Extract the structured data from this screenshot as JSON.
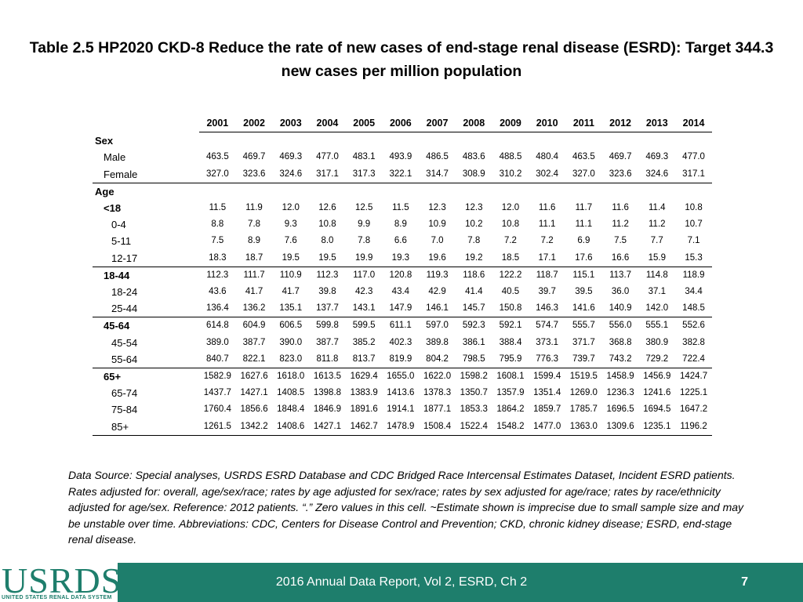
{
  "title": "Table 2.5  HP2020 CKD-8 Reduce the rate of new cases of end-stage renal disease (ESRD): Target 344.3 new cases per million population",
  "table": {
    "years": [
      "2001",
      "2002",
      "2003",
      "2004",
      "2005",
      "2006",
      "2007",
      "2008",
      "2009",
      "2010",
      "2011",
      "2012",
      "2013",
      "2014"
    ],
    "rows": [
      {
        "label": "Sex",
        "style": "group",
        "values": []
      },
      {
        "label": "Male",
        "style": "l1",
        "values": [
          "463.5",
          "469.7",
          "469.3",
          "477.0",
          "483.1",
          "493.9",
          "486.5",
          "483.6",
          "488.5",
          "480.4",
          "463.5",
          "469.7",
          "469.3",
          "477.0"
        ]
      },
      {
        "label": "Female",
        "style": "l1",
        "line": true,
        "values": [
          "327.0",
          "323.6",
          "324.6",
          "317.1",
          "317.3",
          "322.1",
          "314.7",
          "308.9",
          "310.2",
          "302.4",
          "327.0",
          "323.6",
          "324.6",
          "317.1"
        ]
      },
      {
        "label": "Age",
        "style": "group",
        "values": []
      },
      {
        "label": "<18",
        "style": "l1b",
        "values": [
          "11.5",
          "11.9",
          "12.0",
          "12.6",
          "12.5",
          "11.5",
          "12.3",
          "12.3",
          "12.0",
          "11.6",
          "11.7",
          "11.6",
          "11.4",
          "10.8"
        ]
      },
      {
        "label": "0-4",
        "style": "l2",
        "values": [
          "8.8",
          "7.8",
          "9.3",
          "10.8",
          "9.9",
          "8.9",
          "10.9",
          "10.2",
          "10.8",
          "11.1",
          "11.1",
          "11.2",
          "11.2",
          "10.7"
        ]
      },
      {
        "label": "5-11",
        "style": "l2",
        "values": [
          "7.5",
          "8.9",
          "7.6",
          "8.0",
          "7.8",
          "6.6",
          "7.0",
          "7.8",
          "7.2",
          "7.2",
          "6.9",
          "7.5",
          "7.7",
          "7.1"
        ]
      },
      {
        "label": "12-17",
        "style": "l2",
        "line": true,
        "values": [
          "18.3",
          "18.7",
          "19.5",
          "19.5",
          "19.9",
          "19.3",
          "19.6",
          "19.2",
          "18.5",
          "17.1",
          "17.6",
          "16.6",
          "15.9",
          "15.3"
        ]
      },
      {
        "label": "18-44",
        "style": "l1b",
        "values": [
          "112.3",
          "111.7",
          "110.9",
          "112.3",
          "117.0",
          "120.8",
          "119.3",
          "118.6",
          "122.2",
          "118.7",
          "115.1",
          "113.7",
          "114.8",
          "118.9"
        ]
      },
      {
        "label": "18-24",
        "style": "l2",
        "values": [
          "43.6",
          "41.7",
          "41.7",
          "39.8",
          "42.3",
          "43.4",
          "42.9",
          "41.4",
          "40.5",
          "39.7",
          "39.5",
          "36.0",
          "37.1",
          "34.4"
        ]
      },
      {
        "label": "25-44",
        "style": "l2",
        "line": true,
        "values": [
          "136.4",
          "136.2",
          "135.1",
          "137.7",
          "143.1",
          "147.9",
          "146.1",
          "145.7",
          "150.8",
          "146.3",
          "141.6",
          "140.9",
          "142.0",
          "148.5"
        ]
      },
      {
        "label": "45-64",
        "style": "l1b",
        "values": [
          "614.8",
          "604.9",
          "606.5",
          "599.8",
          "599.5",
          "611.1",
          "597.0",
          "592.3",
          "592.1",
          "574.7",
          "555.7",
          "556.0",
          "555.1",
          "552.6"
        ]
      },
      {
        "label": "45-54",
        "style": "l2",
        "values": [
          "389.0",
          "387.7",
          "390.0",
          "387.7",
          "385.2",
          "402.3",
          "389.8",
          "386.1",
          "388.4",
          "373.1",
          "371.7",
          "368.8",
          "380.9",
          "382.8"
        ]
      },
      {
        "label": "55-64",
        "style": "l2",
        "line": true,
        "values": [
          "840.7",
          "822.1",
          "823.0",
          "811.8",
          "813.7",
          "819.9",
          "804.2",
          "798.5",
          "795.9",
          "776.3",
          "739.7",
          "743.2",
          "729.2",
          "722.4"
        ]
      },
      {
        "label": "65+",
        "style": "l1b",
        "values": [
          "1582.9",
          "1627.6",
          "1618.0",
          "1613.5",
          "1629.4",
          "1655.0",
          "1622.0",
          "1598.2",
          "1608.1",
          "1599.4",
          "1519.5",
          "1458.9",
          "1456.9",
          "1424.7"
        ]
      },
      {
        "label": "65-74",
        "style": "l2",
        "values": [
          "1437.7",
          "1427.1",
          "1408.5",
          "1398.8",
          "1383.9",
          "1413.6",
          "1378.3",
          "1350.7",
          "1357.9",
          "1351.4",
          "1269.0",
          "1236.3",
          "1241.6",
          "1225.1"
        ]
      },
      {
        "label": "75-84",
        "style": "l2",
        "values": [
          "1760.4",
          "1856.6",
          "1848.4",
          "1846.9",
          "1891.6",
          "1914.1",
          "1877.1",
          "1853.3",
          "1864.2",
          "1859.7",
          "1785.7",
          "1696.5",
          "1694.5",
          "1647.2"
        ]
      },
      {
        "label": "85+",
        "style": "l2",
        "line": true,
        "values": [
          "1261.5",
          "1342.2",
          "1408.6",
          "1427.1",
          "1462.7",
          "1478.9",
          "1508.4",
          "1522.4",
          "1548.2",
          "1477.0",
          "1363.0",
          "1309.6",
          "1235.1",
          "1196.2"
        ]
      }
    ]
  },
  "note": "Data Source: Special analyses, USRDS ESRD Database and CDC Bridged Race Intercensal Estimates Dataset, Incident ESRD patients. Rates adjusted for: overall, age/sex/race; rates by age adjusted for sex/race; rates by sex adjusted for age/race; rates by race/ethnicity adjusted for age/sex. Reference: 2012 patients. “.” Zero values in this cell. ~Estimate shown is imprecise due to small sample size and may be unstable over time. Abbreviations: CDC, Centers for Disease Control and Prevention; CKD, chronic kidney disease; ESRD, end-stage renal disease.",
  "footer": {
    "logo_text": "USRDS",
    "logo_sub": "UNITED STATES RENAL DATA SYSTEM",
    "text": "2016 Annual Data Report, Vol 2, ESRD, Ch 2",
    "page": "7"
  },
  "colors": {
    "footer_bg": "#1e7e6c"
  }
}
